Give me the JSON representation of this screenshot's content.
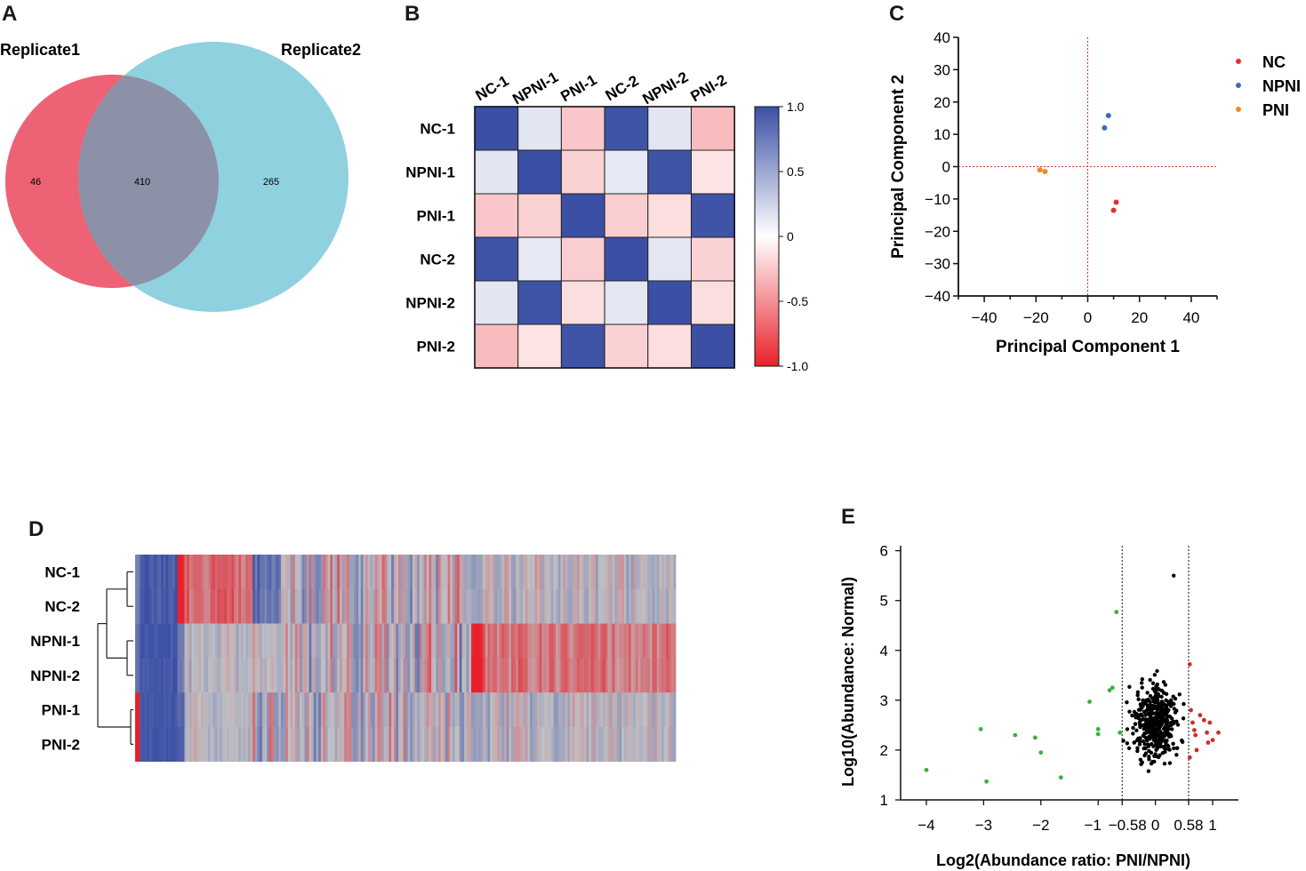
{
  "panels": {
    "a": "A",
    "b": "B",
    "c": "C",
    "d": "D",
    "e": "E"
  },
  "colors": {
    "venn_left": "#ec5a6e",
    "venn_right": "#8fd1de",
    "venn_overlap": "#8d91a8",
    "heat_pos": "#3b4fa5",
    "heat_neg": "#e8202a",
    "pca_nc": "#e23030",
    "pca_npni": "#3a6bbf",
    "pca_pni": "#f08a24",
    "volcano_sig_up": "#d12a2a",
    "volcano_sig_down": "#3bb044",
    "volcano_ns": "#000000"
  },
  "chart_data": [
    {
      "type": "venn",
      "panel": "A",
      "sets": [
        "Replicate1",
        "Replicate2"
      ],
      "counts": {
        "only_left": 46,
        "intersection": 410,
        "only_right": 265
      }
    },
    {
      "type": "heatmap",
      "panel": "B",
      "rows": [
        "NC-1",
        "NPNI-1",
        "PNI-1",
        "NC-2",
        "NPNI-2",
        "PNI-2"
      ],
      "columns": [
        "NC-1",
        "NPNI-1",
        "PNI-1",
        "NC-2",
        "NPNI-2",
        "PNI-2"
      ],
      "values": [
        [
          1.0,
          0.15,
          -0.25,
          0.98,
          0.15,
          -0.3
        ],
        [
          0.15,
          1.0,
          -0.2,
          0.12,
          0.98,
          -0.12
        ],
        [
          -0.25,
          -0.2,
          1.0,
          -0.22,
          -0.15,
          0.98
        ],
        [
          0.98,
          0.12,
          -0.22,
          1.0,
          0.14,
          -0.2
        ],
        [
          0.15,
          0.98,
          -0.15,
          0.14,
          1.0,
          -0.15
        ],
        [
          -0.3,
          -0.12,
          0.98,
          -0.2,
          -0.15,
          1.0
        ]
      ],
      "colorbar": {
        "ticks": [
          "1.0",
          "0.5",
          "0",
          "-0.5",
          "-1.0"
        ],
        "range": [
          -1,
          1
        ]
      }
    },
    {
      "type": "scatter",
      "panel": "C",
      "xlabel": "Principal Component 1",
      "ylabel": "Principal Component 2",
      "xlim": [
        -50,
        50
      ],
      "ylim": [
        -40,
        40
      ],
      "xticks": [
        "-40",
        "-20",
        "0",
        "20",
        "40"
      ],
      "yticks": [
        "40",
        "30",
        "20",
        "10",
        "0",
        "-10",
        "-20",
        "-30",
        "-40"
      ],
      "legend": [
        "NC",
        "NPNI",
        "PNI"
      ],
      "series": [
        {
          "name": "NC",
          "points": [
            [
              11,
              -11
            ],
            [
              10,
              -13.5
            ]
          ]
        },
        {
          "name": "NPNI",
          "points": [
            [
              8,
              15.8
            ],
            [
              6.5,
              12
            ]
          ]
        },
        {
          "name": "PNI",
          "points": [
            [
              -18.5,
              -1
            ],
            [
              -16.5,
              -1.5
            ]
          ]
        }
      ]
    },
    {
      "type": "heatmap",
      "panel": "D",
      "rows": [
        "NC-1",
        "NC-2",
        "NPNI-1",
        "NPNI-2",
        "PNI-1",
        "PNI-2"
      ],
      "columns_count": 230,
      "description_only_visual": true
    },
    {
      "type": "scatter",
      "panel": "E",
      "xlabel": "Log2(Abundance ratio: PNI/NPNI)",
      "ylabel": "Log10(Abundance: Normal)",
      "xlim": [
        -4.45,
        1.45
      ],
      "ylim": [
        1,
        6.1
      ],
      "xticks": [
        "-4",
        "-3",
        "-2",
        "-1",
        "-0.58",
        "0",
        "0.58",
        "1"
      ],
      "yticks": [
        "6",
        "5",
        "4",
        "3",
        "2",
        "1"
      ],
      "thresholds": [
        -0.58,
        0.58
      ],
      "down_points": [
        [
          -4.0,
          1.6
        ],
        [
          -3.05,
          2.42
        ],
        [
          -2.95,
          1.37
        ],
        [
          -2.45,
          2.3
        ],
        [
          -2.1,
          2.25
        ],
        [
          -2.0,
          1.95
        ],
        [
          -1.65,
          1.45
        ],
        [
          -1.15,
          2.97
        ],
        [
          -1.0,
          2.42
        ],
        [
          -1.0,
          2.32
        ],
        [
          -0.8,
          3.2
        ],
        [
          -0.75,
          3.25
        ],
        [
          -0.68,
          4.77
        ],
        [
          -0.62,
          2.35
        ]
      ],
      "up_points": [
        [
          0.6,
          3.72
        ],
        [
          0.62,
          2.8
        ],
        [
          0.65,
          2.55
        ],
        [
          0.7,
          2.3
        ],
        [
          0.72,
          2.0
        ],
        [
          0.78,
          2.7
        ],
        [
          0.85,
          2.6
        ],
        [
          0.9,
          2.35
        ],
        [
          0.92,
          2.15
        ],
        [
          0.95,
          2.55
        ],
        [
          1.0,
          2.2
        ],
        [
          1.1,
          2.35
        ],
        [
          0.6,
          1.85
        ],
        [
          0.68,
          2.4
        ]
      ]
    }
  ]
}
